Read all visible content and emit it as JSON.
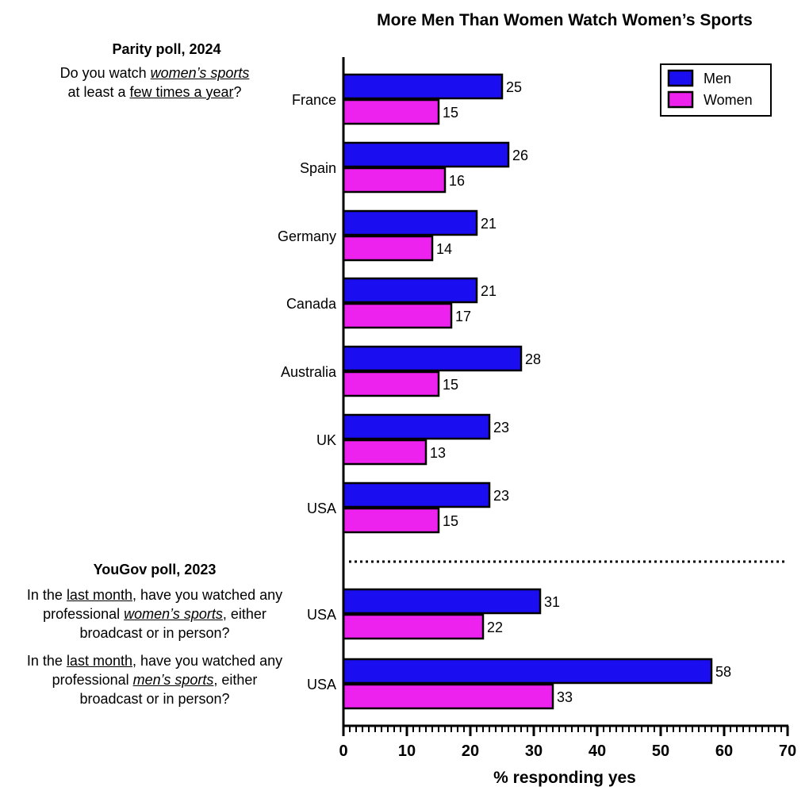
{
  "chart_data": {
    "type": "bar",
    "orientation": "horizontal",
    "title": "More Men Than Women Watch Women’s Sports",
    "xlabel": "% responding yes",
    "xlim": [
      0,
      70
    ],
    "x_ticks": [
      0,
      10,
      20,
      30,
      40,
      50,
      60,
      70
    ],
    "legend_position": "top-right",
    "colors": {
      "men": "#1a0df0",
      "women": "#ee22ee",
      "outline": "#000000"
    },
    "groups": [
      {
        "heading": "Parity poll, 2024",
        "question": {
          "line1": [
            "Do you watch ",
            "women’s sports"
          ],
          "line2": [
            "at least a ",
            "few times a year",
            "?"
          ]
        },
        "categories": [
          "France",
          "Spain",
          "Germany",
          "Canada",
          "Australia",
          "UK",
          "USA"
        ],
        "series": [
          {
            "name": "Men",
            "values": [
              25,
              26,
              21,
              21,
              28,
              23,
              23
            ]
          },
          {
            "name": "Women",
            "values": [
              15,
              16,
              14,
              17,
              15,
              13,
              15
            ]
          }
        ]
      },
      {
        "heading": "YouGov poll, 2023",
        "categories": [
          "USA",
          "USA"
        ],
        "questions": [
          {
            "line1": [
              "In the ",
              "last month",
              ", have you watched any"
            ],
            "line2": [
              "professional ",
              "women’s sports",
              ", either"
            ],
            "line3": "broadcast or in person?"
          },
          {
            "line1": [
              "In the ",
              "last month",
              ", have you watched any"
            ],
            "line2": [
              "professional ",
              "men’s sports",
              ", either"
            ],
            "line3": "broadcast or in person?"
          }
        ],
        "series": [
          {
            "name": "Men",
            "values": [
              31,
              58
            ]
          },
          {
            "name": "Women",
            "values": [
              22,
              33
            ]
          }
        ]
      }
    ]
  }
}
